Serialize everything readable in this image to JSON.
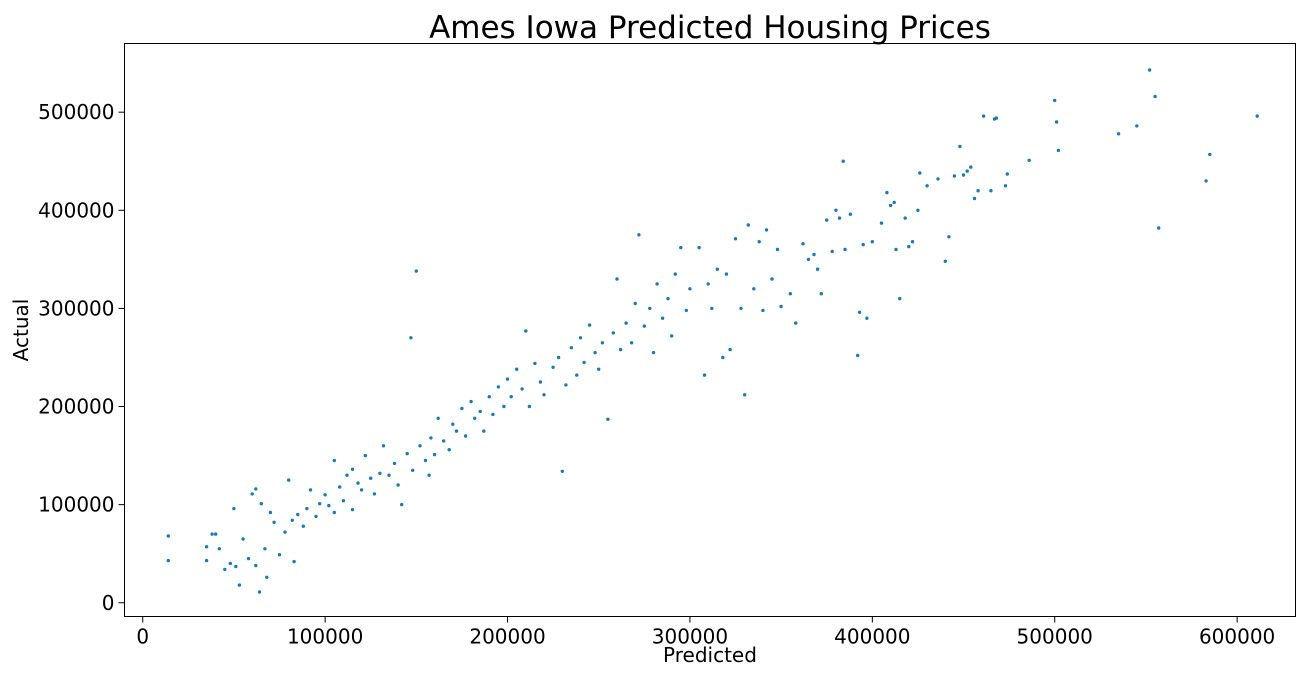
{
  "chart_data": {
    "type": "scatter",
    "title": "Ames Iowa Predicted Housing Prices",
    "xlabel": "Predicted",
    "ylabel": "Actual",
    "xlim": [
      -10000,
      632000
    ],
    "ylim": [
      -14000,
      570000
    ],
    "xticks": [
      0,
      100000,
      200000,
      300000,
      400000,
      500000,
      600000
    ],
    "yticks": [
      0,
      100000,
      200000,
      300000,
      400000,
      500000
    ],
    "xtick_labels": [
      "0",
      "100000",
      "200000",
      "300000",
      "400000",
      "500000",
      "600000"
    ],
    "ytick_labels": [
      "0",
      "100000",
      "200000",
      "300000",
      "400000",
      "500000"
    ],
    "grid": false,
    "marker_color": "#1f77b4",
    "series": [
      {
        "points": [
          [
            14000,
            68000
          ],
          [
            14000,
            43000
          ],
          [
            35000,
            57000
          ],
          [
            35000,
            43000
          ],
          [
            38000,
            70000
          ],
          [
            40000,
            70000
          ],
          [
            42000,
            55000
          ],
          [
            45000,
            34000
          ],
          [
            48000,
            40000
          ],
          [
            50000,
            96000
          ],
          [
            51000,
            37000
          ],
          [
            53000,
            18000
          ],
          [
            55000,
            65000
          ],
          [
            58000,
            45000
          ],
          [
            60000,
            111000
          ],
          [
            62000,
            116000
          ],
          [
            62000,
            38000
          ],
          [
            64000,
            11000
          ],
          [
            65000,
            101000
          ],
          [
            67000,
            55000
          ],
          [
            68000,
            26000
          ],
          [
            70000,
            92000
          ],
          [
            72000,
            82000
          ],
          [
            75000,
            49000
          ],
          [
            78000,
            72000
          ],
          [
            80000,
            125000
          ],
          [
            82000,
            84000
          ],
          [
            83000,
            42000
          ],
          [
            85000,
            90000
          ],
          [
            88000,
            78000
          ],
          [
            90000,
            96000
          ],
          [
            92000,
            115000
          ],
          [
            95000,
            88000
          ],
          [
            97000,
            101000
          ],
          [
            100000,
            110000
          ],
          [
            102000,
            99000
          ],
          [
            105000,
            145000
          ],
          [
            105000,
            92000
          ],
          [
            108000,
            118000
          ],
          [
            110000,
            104000
          ],
          [
            112000,
            130000
          ],
          [
            115000,
            136000
          ],
          [
            115000,
            95000
          ],
          [
            118000,
            122000
          ],
          [
            120000,
            115000
          ],
          [
            122000,
            150000
          ],
          [
            125000,
            127000
          ],
          [
            127000,
            111000
          ],
          [
            130000,
            132000
          ],
          [
            132000,
            160000
          ],
          [
            135000,
            130000
          ],
          [
            138000,
            142000
          ],
          [
            140000,
            120000
          ],
          [
            142000,
            100000
          ],
          [
            145000,
            152000
          ],
          [
            147000,
            270000
          ],
          [
            148000,
            135000
          ],
          [
            150000,
            338000
          ],
          [
            152000,
            160000
          ],
          [
            155000,
            145000
          ],
          [
            157000,
            130000
          ],
          [
            158000,
            168000
          ],
          [
            160000,
            151000
          ],
          [
            162000,
            188000
          ],
          [
            165000,
            165000
          ],
          [
            168000,
            156000
          ],
          [
            170000,
            182000
          ],
          [
            172000,
            175000
          ],
          [
            175000,
            198000
          ],
          [
            177000,
            170000
          ],
          [
            180000,
            205000
          ],
          [
            182000,
            188000
          ],
          [
            185000,
            195000
          ],
          [
            187000,
            175000
          ],
          [
            190000,
            210000
          ],
          [
            192000,
            192000
          ],
          [
            195000,
            220000
          ],
          [
            198000,
            200000
          ],
          [
            200000,
            228000
          ],
          [
            202000,
            210000
          ],
          [
            205000,
            238000
          ],
          [
            208000,
            218000
          ],
          [
            210000,
            277000
          ],
          [
            212000,
            200000
          ],
          [
            215000,
            244000
          ],
          [
            218000,
            225000
          ],
          [
            220000,
            212000
          ],
          [
            225000,
            240000
          ],
          [
            228000,
            250000
          ],
          [
            230000,
            134000
          ],
          [
            232000,
            222000
          ],
          [
            235000,
            260000
          ],
          [
            238000,
            232000
          ],
          [
            240000,
            270000
          ],
          [
            242000,
            245000
          ],
          [
            245000,
            283000
          ],
          [
            248000,
            255000
          ],
          [
            250000,
            238000
          ],
          [
            252000,
            265000
          ],
          [
            255000,
            187000
          ],
          [
            258000,
            275000
          ],
          [
            260000,
            330000
          ],
          [
            262000,
            258000
          ],
          [
            265000,
            285000
          ],
          [
            268000,
            265000
          ],
          [
            270000,
            305000
          ],
          [
            272000,
            375000
          ],
          [
            275000,
            282000
          ],
          [
            278000,
            300000
          ],
          [
            280000,
            255000
          ],
          [
            282000,
            325000
          ],
          [
            285000,
            290000
          ],
          [
            288000,
            310000
          ],
          [
            290000,
            272000
          ],
          [
            292000,
            335000
          ],
          [
            295000,
            362000
          ],
          [
            298000,
            298000
          ],
          [
            300000,
            320000
          ],
          [
            305000,
            362000
          ],
          [
            308000,
            232000
          ],
          [
            310000,
            325000
          ],
          [
            312000,
            300000
          ],
          [
            315000,
            340000
          ],
          [
            318000,
            250000
          ],
          [
            320000,
            335000
          ],
          [
            322000,
            258000
          ],
          [
            325000,
            371000
          ],
          [
            328000,
            300000
          ],
          [
            330000,
            212000
          ],
          [
            332000,
            385000
          ],
          [
            335000,
            320000
          ],
          [
            338000,
            368000
          ],
          [
            340000,
            298000
          ],
          [
            342000,
            380000
          ],
          [
            345000,
            330000
          ],
          [
            348000,
            360000
          ],
          [
            350000,
            302000
          ],
          [
            355000,
            315000
          ],
          [
            358000,
            285000
          ],
          [
            362000,
            366000
          ],
          [
            365000,
            350000
          ],
          [
            368000,
            355000
          ],
          [
            370000,
            340000
          ],
          [
            372000,
            315000
          ],
          [
            375000,
            390000
          ],
          [
            378000,
            358000
          ],
          [
            380000,
            400000
          ],
          [
            382000,
            392000
          ],
          [
            384000,
            450000
          ],
          [
            385000,
            360000
          ],
          [
            388000,
            396000
          ],
          [
            392000,
            252000
          ],
          [
            393000,
            296000
          ],
          [
            395000,
            365000
          ],
          [
            397000,
            290000
          ],
          [
            400000,
            368000
          ],
          [
            405000,
            387000
          ],
          [
            408000,
            418000
          ],
          [
            410000,
            405000
          ],
          [
            412000,
            408000
          ],
          [
            413000,
            360000
          ],
          [
            415000,
            310000
          ],
          [
            418000,
            392000
          ],
          [
            420000,
            363000
          ],
          [
            422000,
            368000
          ],
          [
            425000,
            400000
          ],
          [
            426000,
            438000
          ],
          [
            430000,
            425000
          ],
          [
            436000,
            432000
          ],
          [
            440000,
            348000
          ],
          [
            442000,
            373000
          ],
          [
            445000,
            435000
          ],
          [
            448000,
            465000
          ],
          [
            450000,
            436000
          ],
          [
            452000,
            440000
          ],
          [
            454000,
            444000
          ],
          [
            456000,
            412000
          ],
          [
            458000,
            420000
          ],
          [
            461000,
            496000
          ],
          [
            465000,
            420000
          ],
          [
            467000,
            493000
          ],
          [
            468000,
            494000
          ],
          [
            473000,
            425000
          ],
          [
            474000,
            437000
          ],
          [
            486000,
            451000
          ],
          [
            500000,
            512000
          ],
          [
            501000,
            490000
          ],
          [
            502000,
            461000
          ],
          [
            535000,
            478000
          ],
          [
            545000,
            486000
          ],
          [
            552000,
            543000
          ],
          [
            555000,
            516000
          ],
          [
            557000,
            382000
          ],
          [
            583000,
            430000
          ],
          [
            585000,
            457000
          ],
          [
            611000,
            496000
          ]
        ]
      }
    ]
  }
}
